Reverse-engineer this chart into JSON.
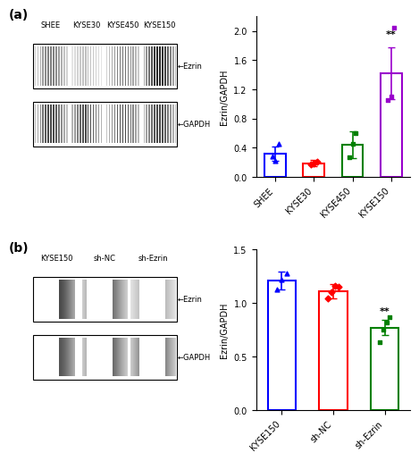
{
  "panel_a": {
    "categories": [
      "SHEE",
      "KYSE30",
      "KYSE450",
      "KYSE150"
    ],
    "bar_values": [
      0.32,
      0.19,
      0.44,
      1.42
    ],
    "error_bars": [
      0.1,
      0.04,
      0.18,
      0.35
    ],
    "bar_colors": [
      "#0000FF",
      "#FF0000",
      "#008000",
      "#9900CC"
    ],
    "scatter_points": [
      [
        0.28,
        0.22,
        0.46
      ],
      [
        0.17,
        0.19,
        0.21
      ],
      [
        0.27,
        0.45,
        0.6
      ],
      [
        1.05,
        1.1,
        2.05
      ]
    ],
    "scatter_colors": [
      "#0000FF",
      "#FF0000",
      "#008000",
      "#9900CC"
    ],
    "scatter_markers": [
      "^",
      "D",
      "s",
      "s"
    ],
    "ylim": [
      0,
      2.2
    ],
    "yticks": [
      0.0,
      0.4,
      0.8,
      1.2,
      1.6,
      2.0
    ],
    "ylabel": "Ezrin/GAPDH",
    "significance": {
      "index": 3,
      "text": "**"
    },
    "panel_label": "(a)"
  },
  "panel_b": {
    "categories": [
      "KYSE150",
      "sh-NC",
      "sh-Ezrin"
    ],
    "bar_values": [
      1.21,
      1.11,
      0.77
    ],
    "error_bars": [
      0.08,
      0.07,
      0.07
    ],
    "bar_colors": [
      "#0000FF",
      "#FF0000",
      "#008000"
    ],
    "scatter_points": [
      [
        1.13,
        1.22,
        1.28
      ],
      [
        1.04,
        1.1,
        1.16,
        1.15
      ],
      [
        0.63,
        0.75,
        0.82,
        0.87
      ]
    ],
    "scatter_colors": [
      "#0000FF",
      "#FF0000",
      "#008000"
    ],
    "scatter_markers": [
      "^",
      "D",
      "s"
    ],
    "ylim": [
      0,
      1.5
    ],
    "yticks": [
      0.0,
      0.5,
      1.0,
      1.5
    ],
    "ylabel": "Ezrin/GAPDH",
    "significance": {
      "index": 2,
      "text": "**"
    },
    "panel_label": "(b)"
  },
  "blot_a": {
    "lane_labels": [
      "SHEE",
      "KYSE30",
      "KYSE450",
      "KYSE150"
    ],
    "bands": [
      {
        "label": "Ezrin",
        "intensities": [
          0.6,
          0.3,
          0.65,
          1.0
        ]
      },
      {
        "label": "GAPDH",
        "intensities": [
          0.85,
          0.85,
          0.85,
          0.85
        ]
      }
    ]
  },
  "blot_b": {
    "lane_labels": [
      "KYSE150",
      "sh-NC",
      "sh-Ezrin"
    ],
    "bands": [
      {
        "label": "Ezrin",
        "intensities": [
          0.85,
          0.75,
          0.45
        ]
      },
      {
        "label": "GAPDH",
        "intensities": [
          0.8,
          0.8,
          0.8
        ]
      }
    ]
  },
  "background_color": "#FFFFFF",
  "font_size": 7,
  "title_font_size": 8
}
